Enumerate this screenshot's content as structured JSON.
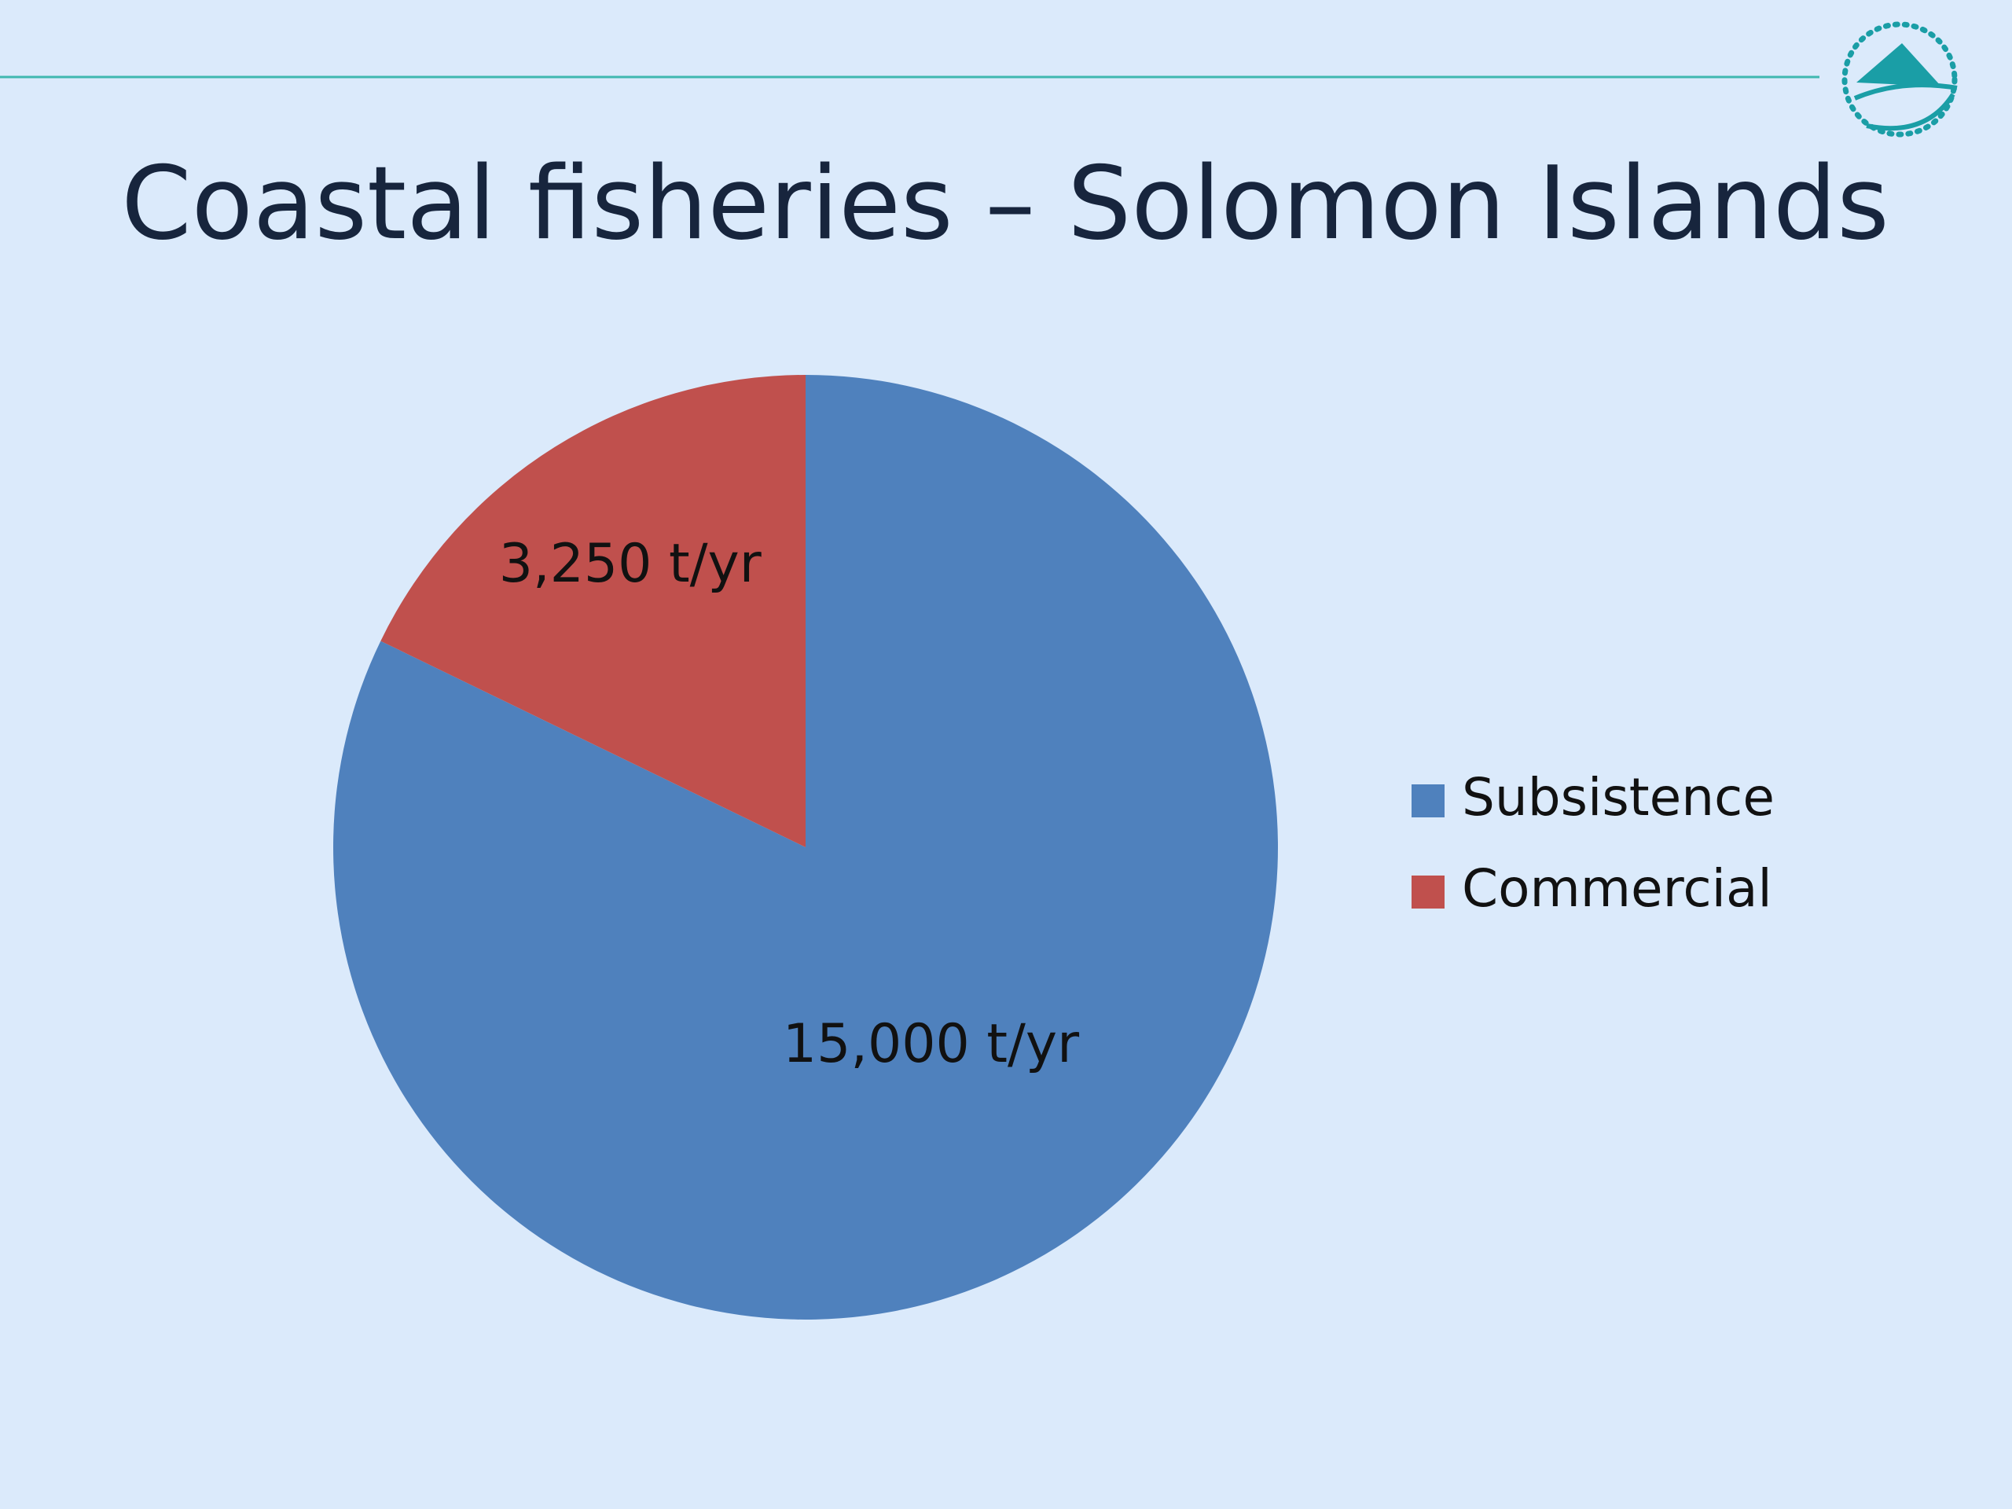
{
  "chart_data": {
    "type": "pie",
    "title": "Coastal fisheries – Solomon Islands",
    "categories": [
      "Subsistence",
      "Commercial"
    ],
    "values": [
      15000,
      3250
    ],
    "value_labels": [
      "15,000 t/yr",
      "3,250 t/yr"
    ],
    "colors": [
      "#4f81bd",
      "#c0504d"
    ],
    "start_angle": 0,
    "direction": "clockwise",
    "legend": "right"
  }
}
